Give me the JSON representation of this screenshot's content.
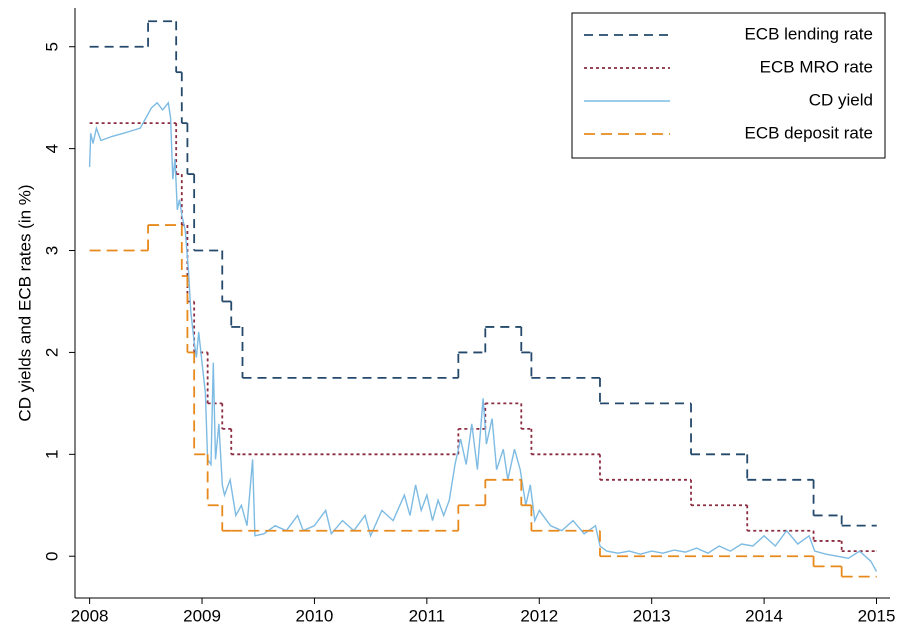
{
  "chart_data": {
    "type": "line",
    "step": "post",
    "ylabel": "CD yields and ECB rates (in %)",
    "xlim": [
      2007.87,
      2015.12
    ],
    "xticks": [
      2008,
      2009,
      2010,
      2011,
      2012,
      2013,
      2014,
      2015
    ],
    "ylim": [
      -0.41,
      5.38
    ],
    "yticks": [
      0,
      1,
      2,
      3,
      4,
      5
    ],
    "legend": "upper right",
    "series": [
      {
        "name": "ECB lending rate",
        "color": "#24496b",
        "style": "dash",
        "step": true,
        "x": [
          2008.0,
          2008.52,
          2008.77,
          2008.82,
          2008.87,
          2008.93,
          2009.18,
          2009.26,
          2009.36,
          2011.28,
          2011.52,
          2011.84,
          2011.93,
          2012.54,
          2013.35,
          2013.85,
          2014.44,
          2014.69,
          2015.0
        ],
        "values": [
          5.0,
          5.25,
          4.75,
          4.25,
          3.75,
          3.0,
          2.5,
          2.25,
          1.75,
          2.0,
          2.25,
          2.0,
          1.75,
          1.5,
          1.0,
          0.75,
          0.4,
          0.3,
          0.3
        ]
      },
      {
        "name": "ECB MRO rate",
        "color": "#8b2d42",
        "style": "dot",
        "step": true,
        "x": [
          2008.0,
          2008.77,
          2008.82,
          2008.87,
          2008.93,
          2009.05,
          2009.18,
          2009.26,
          2009.36,
          2011.28,
          2011.52,
          2011.84,
          2011.93,
          2012.54,
          2013.35,
          2013.85,
          2014.44,
          2014.69,
          2015.0
        ],
        "values": [
          4.25,
          3.75,
          3.25,
          2.5,
          2.0,
          1.5,
          1.25,
          1.0,
          1.0,
          1.25,
          1.5,
          1.25,
          1.0,
          0.75,
          0.5,
          0.25,
          0.15,
          0.05,
          0.05
        ]
      },
      {
        "name": "CD yield",
        "color": "#7dbbe3",
        "style": "solid",
        "step": false,
        "x": [
          2008.0,
          2008.01,
          2008.03,
          2008.06,
          2008.1,
          2008.2,
          2008.3,
          2008.45,
          2008.5,
          2008.55,
          2008.6,
          2008.65,
          2008.7,
          2008.72,
          2008.74,
          2008.76,
          2008.78,
          2008.8,
          2008.82,
          2008.85,
          2008.88,
          2008.9,
          2008.93,
          2008.95,
          2008.97,
          2009.0,
          2009.03,
          2009.05,
          2009.08,
          2009.1,
          2009.12,
          2009.15,
          2009.18,
          2009.2,
          2009.25,
          2009.3,
          2009.35,
          2009.4,
          2009.45,
          2009.47,
          2009.55,
          2009.65,
          2009.75,
          2009.85,
          2009.9,
          2010.0,
          2010.1,
          2010.15,
          2010.25,
          2010.35,
          2010.45,
          2010.5,
          2010.6,
          2010.7,
          2010.8,
          2010.85,
          2010.9,
          2010.95,
          2011.0,
          2011.05,
          2011.1,
          2011.15,
          2011.2,
          2011.25,
          2011.3,
          2011.35,
          2011.4,
          2011.45,
          2011.5,
          2011.53,
          2011.58,
          2011.62,
          2011.68,
          2011.72,
          2011.78,
          2011.83,
          2011.88,
          2011.92,
          2011.96,
          2012.0,
          2012.1,
          2012.2,
          2012.3,
          2012.4,
          2012.5,
          2012.54,
          2012.6,
          2012.7,
          2012.8,
          2012.9,
          2013.0,
          2013.1,
          2013.2,
          2013.3,
          2013.4,
          2013.5,
          2013.6,
          2013.7,
          2013.8,
          2013.9,
          2014.0,
          2014.1,
          2014.2,
          2014.3,
          2014.4,
          2014.45,
          2014.55,
          2014.65,
          2014.75,
          2014.85,
          2014.95,
          2015.0
        ],
        "values": [
          3.82,
          4.15,
          4.05,
          4.2,
          4.08,
          4.12,
          4.15,
          4.2,
          4.3,
          4.4,
          4.45,
          4.38,
          4.45,
          4.3,
          3.7,
          3.9,
          3.4,
          3.5,
          3.35,
          3.2,
          2.8,
          2.4,
          2.1,
          1.95,
          2.2,
          1.9,
          1.6,
          0.95,
          0.9,
          1.9,
          0.95,
          1.3,
          0.7,
          0.6,
          0.75,
          0.4,
          0.5,
          0.3,
          0.95,
          0.2,
          0.22,
          0.3,
          0.25,
          0.4,
          0.25,
          0.3,
          0.45,
          0.22,
          0.35,
          0.25,
          0.4,
          0.2,
          0.45,
          0.35,
          0.6,
          0.4,
          0.7,
          0.45,
          0.6,
          0.35,
          0.55,
          0.4,
          0.55,
          0.9,
          1.15,
          0.9,
          1.3,
          0.85,
          1.55,
          1.1,
          1.35,
          0.85,
          1.05,
          0.75,
          1.05,
          0.85,
          0.5,
          0.7,
          0.35,
          0.45,
          0.3,
          0.25,
          0.35,
          0.22,
          0.3,
          0.1,
          0.05,
          0.03,
          0.05,
          0.02,
          0.05,
          0.03,
          0.06,
          0.04,
          0.08,
          0.03,
          0.1,
          0.05,
          0.12,
          0.1,
          0.2,
          0.1,
          0.25,
          0.12,
          0.2,
          0.05,
          0.02,
          0.0,
          -0.02,
          0.05,
          -0.05,
          -0.15
        ]
      },
      {
        "name": "ECB deposit rate",
        "color": "#e8891c",
        "style": "longdash",
        "step": true,
        "x": [
          2008.0,
          2008.52,
          2008.82,
          2008.87,
          2008.93,
          2009.05,
          2009.18,
          2009.26,
          2011.28,
          2011.52,
          2011.84,
          2011.93,
          2012.54,
          2014.44,
          2014.69,
          2015.0
        ],
        "values": [
          3.0,
          3.25,
          2.75,
          2.0,
          1.0,
          0.5,
          0.25,
          0.25,
          0.5,
          0.75,
          0.5,
          0.25,
          0.0,
          -0.1,
          -0.2,
          -0.2
        ]
      }
    ]
  }
}
